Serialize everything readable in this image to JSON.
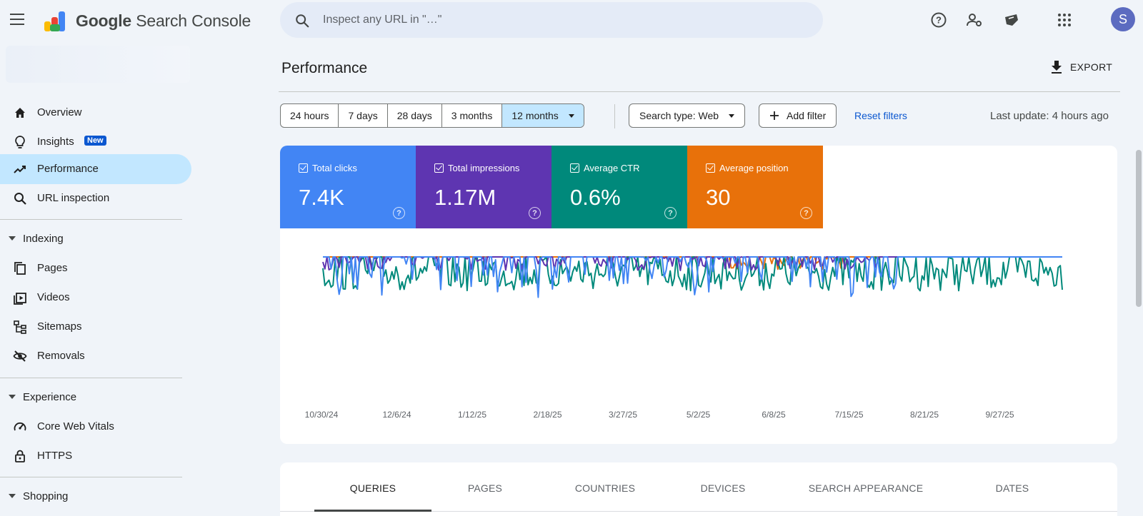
{
  "app": {
    "title": "Google Search Console",
    "title_bold": "Google",
    "title_rest": " Search Console"
  },
  "search": {
    "placeholder": "Inspect any URL in \"…\""
  },
  "user": {
    "avatar_letter": "S"
  },
  "sidebar": {
    "items": [
      {
        "label": "Overview",
        "icon": "home-icon"
      },
      {
        "label": "Insights",
        "icon": "lightbulb-icon",
        "badge": "New"
      },
      {
        "label": "Performance",
        "icon": "trending-icon",
        "active": true
      },
      {
        "label": "URL inspection",
        "icon": "search-icon"
      }
    ],
    "sections": [
      {
        "label": "Indexing",
        "items": [
          {
            "label": "Pages",
            "icon": "pages-icon"
          },
          {
            "label": "Videos",
            "icon": "video-icon"
          },
          {
            "label": "Sitemaps",
            "icon": "sitemap-icon"
          },
          {
            "label": "Removals",
            "icon": "removals-icon"
          }
        ]
      },
      {
        "label": "Experience",
        "items": [
          {
            "label": "Core Web Vitals",
            "icon": "gauge-icon"
          },
          {
            "label": "HTTPS",
            "icon": "lock-icon"
          }
        ]
      },
      {
        "label": "Shopping",
        "items": []
      }
    ]
  },
  "page": {
    "title": "Performance",
    "export_label": "EXPORT",
    "last_update": "Last update: 4 hours ago"
  },
  "filters": {
    "date_ranges": [
      "24 hours",
      "7 days",
      "28 days",
      "3 months",
      "12 months"
    ],
    "selected_range": "12 months",
    "search_type": "Search type: Web",
    "add_filter": "Add filter",
    "reset": "Reset filters"
  },
  "metrics": [
    {
      "label": "Total clicks",
      "value": "7.4K",
      "color": "#4285f4",
      "checked": true
    },
    {
      "label": "Total impressions",
      "value": "1.17M",
      "color": "#5e35b1",
      "checked": true
    },
    {
      "label": "Average CTR",
      "value": "0.6%",
      "color": "#00897b",
      "checked": true
    },
    {
      "label": "Average position",
      "value": "30",
      "color": "#e8710a",
      "checked": true
    }
  ],
  "chart_data": {
    "type": "line",
    "x_ticks": [
      "10/30/24",
      "12/6/24",
      "1/12/25",
      "2/18/25",
      "3/27/25",
      "5/2/25",
      "6/8/25",
      "7/15/25",
      "8/21/25",
      "9/27/25"
    ],
    "series_colors": [
      "#4285f4",
      "#5e35b1",
      "#00897b",
      "#e8710a"
    ],
    "grid": false,
    "legend": "none"
  },
  "tabs": [
    "QUERIES",
    "PAGES",
    "COUNTRIES",
    "DEVICES",
    "SEARCH APPEARANCE",
    "DATES"
  ],
  "active_tab": "QUERIES"
}
